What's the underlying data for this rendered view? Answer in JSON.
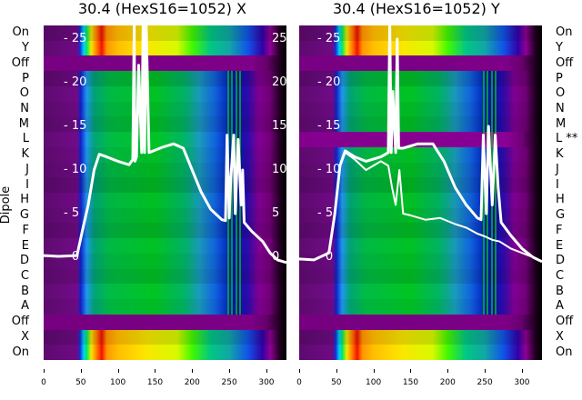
{
  "chart_data": [
    {
      "type": "heatmap",
      "title": "30.4 (HexS16=1052) X",
      "ylabel": "Dipole",
      "row_labels": [
        "On",
        "Y",
        "Off",
        "P",
        "O",
        "N",
        "M",
        "L",
        "K",
        "J",
        "I",
        "H",
        "G",
        "F",
        "E",
        "D",
        "C",
        "B",
        "A",
        "Off",
        "X",
        "On"
      ],
      "row_types": [
        "on",
        "on",
        "off",
        "wire",
        "wire",
        "wire",
        "wire",
        "wire",
        "wire",
        "wire",
        "wire",
        "wire",
        "wire",
        "wire",
        "wire",
        "wire",
        "wire",
        "wire",
        "wire",
        "off",
        "on",
        "on"
      ],
      "xlim": [
        0,
        327
      ],
      "xticks": [
        0,
        50,
        100,
        150,
        200,
        250,
        300
      ],
      "profile_ylim": [
        -3,
        27
      ],
      "profile_yticks": [
        0,
        5,
        10,
        15,
        20,
        25
      ],
      "profiles": [
        {
          "x": [
            0,
            20,
            45,
            52,
            60,
            68,
            75,
            85,
            100,
            115,
            120,
            122,
            123,
            125,
            128,
            132,
            134,
            136,
            138,
            142,
            160,
            175,
            188,
            200,
            212,
            225,
            240,
            245,
            247,
            250,
            252,
            256,
            258,
            262,
            266,
            268,
            270,
            280,
            295,
            305,
            315,
            327
          ],
          "y": [
            0.2,
            0.1,
            0.2,
            3,
            6,
            10,
            11.8,
            11.5,
            11,
            10.6,
            11.2,
            27,
            11,
            11.5,
            22,
            12,
            27,
            12,
            27,
            12,
            12.6,
            13,
            12.5,
            10,
            7.5,
            5.5,
            4.3,
            4.2,
            14,
            4.5,
            9,
            14,
            5,
            13.5,
            6,
            10,
            4,
            3,
            1.8,
            0.5,
            -0.3,
            -0.6
          ]
        }
      ]
    },
    {
      "type": "heatmap",
      "title": "30.4 (HexS16=1052) Y",
      "row_labels": [
        "On",
        "Y",
        "Off",
        "P",
        "O",
        "N",
        "M",
        "L **",
        "K",
        "J",
        "I",
        "H",
        "G",
        "F",
        "E",
        "D",
        "C",
        "B",
        "A",
        "Off",
        "X",
        "On"
      ],
      "row_types": [
        "on",
        "on",
        "off",
        "wire",
        "wire",
        "wire",
        "wire",
        "off",
        "wire",
        "wire",
        "wire",
        "wire",
        "wire",
        "wire",
        "wire",
        "wire",
        "wire",
        "wire",
        "wire",
        "off",
        "on",
        "on"
      ],
      "xlim": [
        0,
        327
      ],
      "xticks": [
        0,
        50,
        100,
        150,
        200,
        250,
        300
      ],
      "profile_ylim": [
        -3,
        27
      ],
      "profile_yticks": [
        0,
        5,
        10,
        15,
        20,
        25
      ],
      "profiles": [
        {
          "x": [
            0,
            20,
            40,
            48,
            55,
            62,
            75,
            90,
            110,
            120,
            122,
            124,
            126,
            130,
            132,
            134,
            140,
            160,
            180,
            195,
            210,
            225,
            240,
            245,
            248,
            252,
            255,
            260,
            264,
            268,
            272,
            285,
            300,
            315,
            327
          ],
          "y": [
            -0.2,
            -0.3,
            0.5,
            5,
            10.5,
            12.2,
            11.5,
            11,
            11.5,
            12,
            27,
            12,
            19,
            12,
            25,
            12.5,
            12.5,
            13,
            13,
            11,
            8,
            6,
            4.5,
            4.3,
            14,
            5,
            15,
            6,
            14,
            8,
            4,
            2.5,
            1,
            0,
            -0.5
          ]
        },
        {
          "x": [
            0,
            20,
            40,
            48,
            55,
            62,
            75,
            90,
            110,
            120,
            125,
            130,
            135,
            140,
            150,
            170,
            190,
            210,
            225,
            240,
            250,
            260,
            270,
            285,
            300,
            315,
            327
          ],
          "y": [
            -0.2,
            -0.3,
            0.5,
            5,
            10.5,
            12,
            11.2,
            10,
            11,
            10.5,
            8,
            6,
            10,
            5,
            4.8,
            4.3,
            4.5,
            3.8,
            3.4,
            2.7,
            2.4,
            2,
            1.8,
            1,
            0.5,
            0,
            -0.5
          ]
        }
      ]
    }
  ],
  "colormaps": {
    "wire": [
      [
        0,
        "#5a0a6a"
      ],
      [
        45,
        "#6a0a80"
      ],
      [
        50,
        "#1020c0"
      ],
      [
        58,
        "#1e8ee0"
      ],
      [
        68,
        "#009a70"
      ],
      [
        90,
        "#00b040"
      ],
      [
        150,
        "#00b820"
      ],
      [
        190,
        "#00a860"
      ],
      [
        210,
        "#1890b0"
      ],
      [
        230,
        "#1060d0"
      ],
      [
        255,
        "#0010b0"
      ],
      [
        275,
        "#2a0aa0"
      ],
      [
        290,
        "#7a008a"
      ],
      [
        305,
        "#6a0070"
      ],
      [
        318,
        "#200020"
      ],
      [
        327,
        "#000000"
      ]
    ],
    "on": [
      [
        0,
        "#5a0a6a"
      ],
      [
        45,
        "#6a0a80"
      ],
      [
        49,
        "#1030d0"
      ],
      [
        54,
        "#00c8f0"
      ],
      [
        58,
        "#00e060"
      ],
      [
        64,
        "#e8e000"
      ],
      [
        72,
        "#ff7000"
      ],
      [
        78,
        "#e81000"
      ],
      [
        85,
        "#ff9000"
      ],
      [
        100,
        "#ffb800"
      ],
      [
        140,
        "#f0e000"
      ],
      [
        180,
        "#d0f000"
      ],
      [
        200,
        "#40f000"
      ],
      [
        225,
        "#00c080"
      ],
      [
        250,
        "#10a0a0"
      ],
      [
        275,
        "#1050e0"
      ],
      [
        295,
        "#3000a0"
      ],
      [
        305,
        "#8a0090"
      ],
      [
        318,
        "#200020"
      ],
      [
        327,
        "#000000"
      ]
    ],
    "off": [
      [
        0,
        "#7a0084"
      ],
      [
        280,
        "#80008a"
      ],
      [
        300,
        "#6a0070"
      ],
      [
        318,
        "#200020"
      ],
      [
        327,
        "#000000"
      ]
    ]
  },
  "colors": {
    "profile": "#ffffff",
    "wire_mark": "#00d000"
  }
}
